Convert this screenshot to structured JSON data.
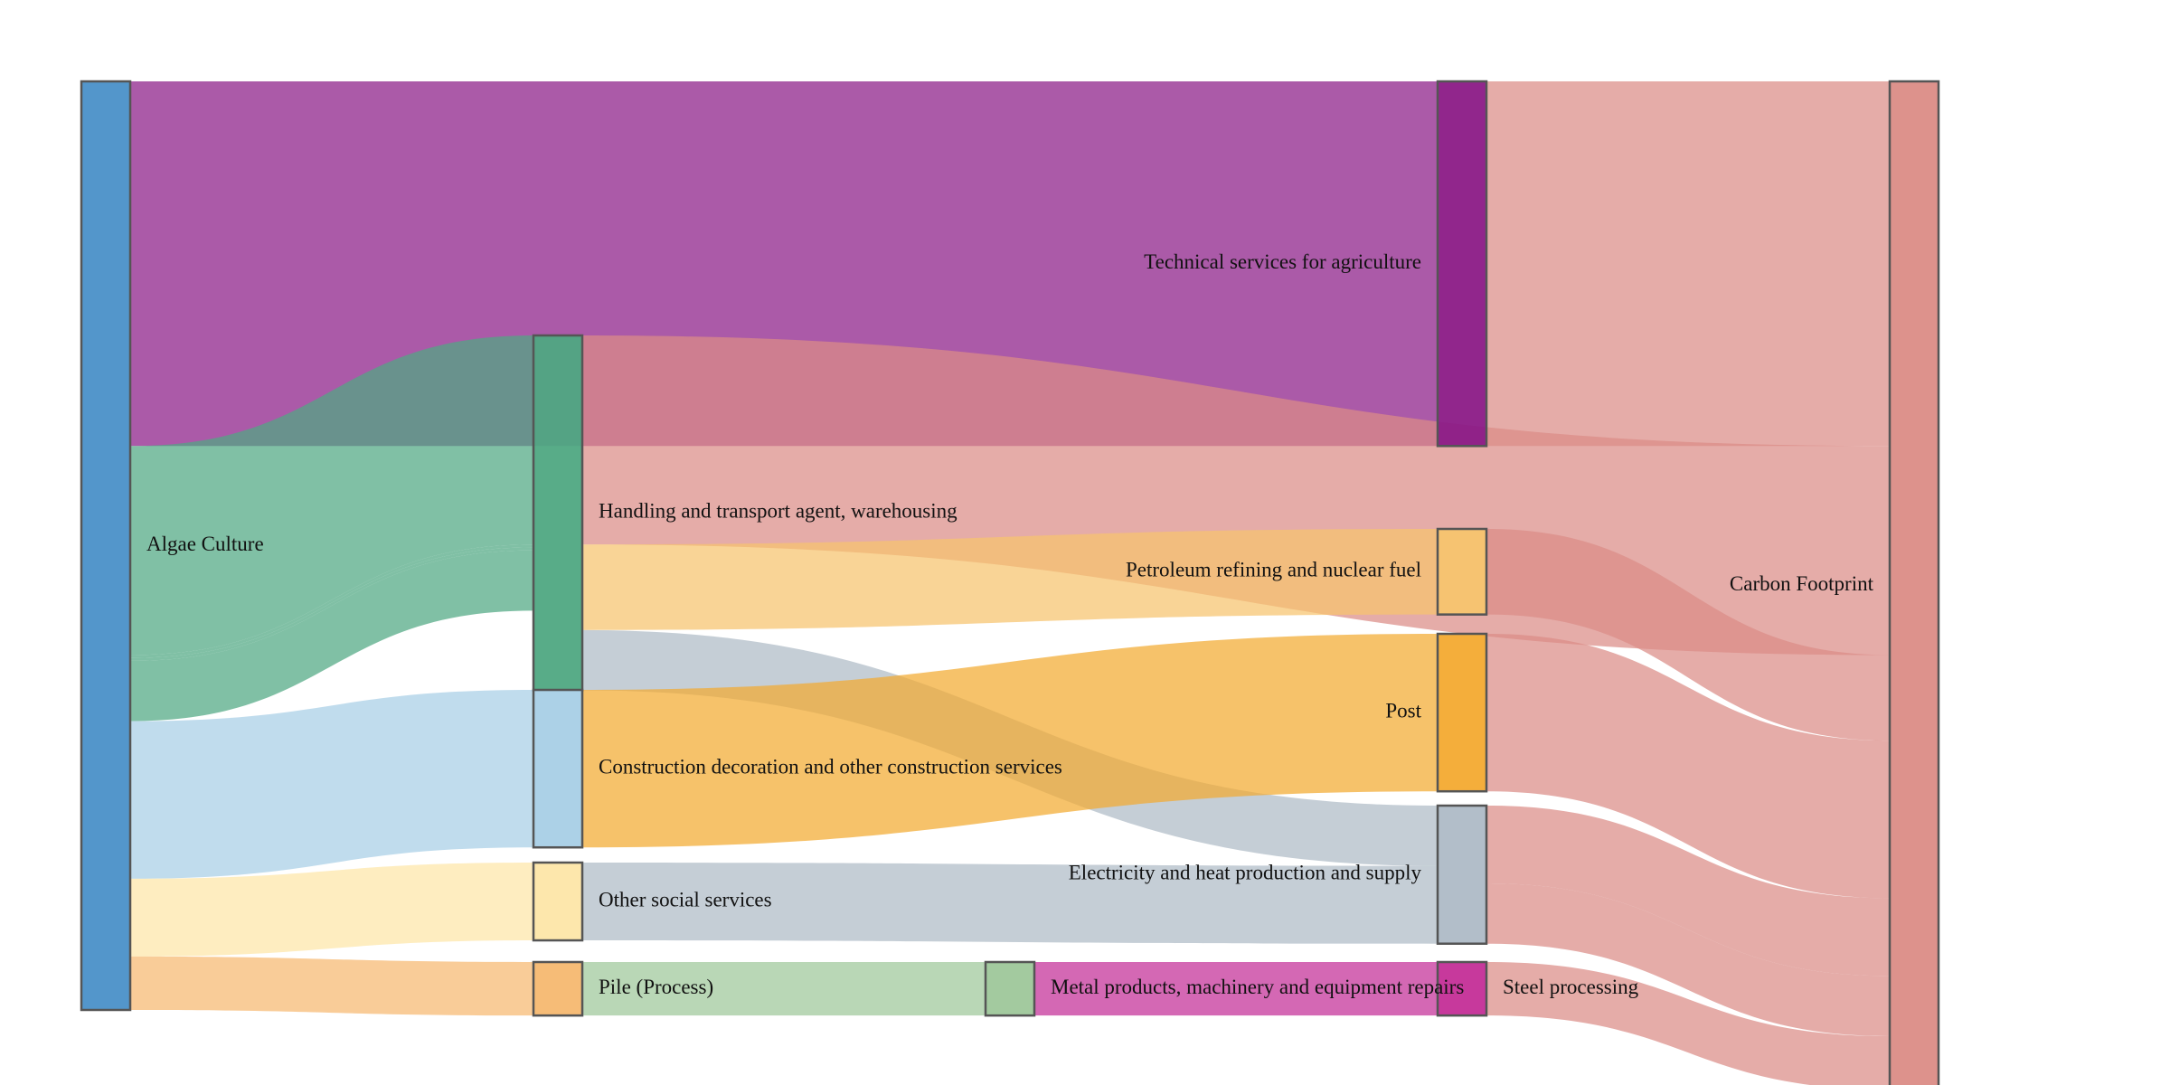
{
  "chart_data": {
    "type": "sankey",
    "nodes": [
      {
        "id": "algae",
        "name": "Algae Culture",
        "color": "#4a90c8"
      },
      {
        "id": "handling",
        "name": "Handling and transport agent, warehousing",
        "color": "#4fa882"
      },
      {
        "id": "construction",
        "name": "Construction decoration and other construction services",
        "color": "#a8cfe6"
      },
      {
        "id": "social",
        "name": "Other social services",
        "color": "#fde6a8"
      },
      {
        "id": "pile",
        "name": "Pile (Process)",
        "color": "#f6b870"
      },
      {
        "id": "metal",
        "name": "Metal products, machinery and equipment repairs",
        "color": "#9ec79a"
      },
      {
        "id": "technical",
        "name": "Technical services for agriculture",
        "color": "#8b1a86"
      },
      {
        "id": "petroleum",
        "name": "Petroleum refining and nuclear fuel",
        "color": "#f7c46e"
      },
      {
        "id": "post",
        "name": "Post",
        "color": "#f3aa30"
      },
      {
        "id": "electricity",
        "name": "Electricity and heat production and supply",
        "color": "#aebbc6"
      },
      {
        "id": "steel",
        "name": "Steel processing",
        "color": "#c42e97"
      },
      {
        "id": "carbon",
        "name": "Carbon Footprint",
        "color": "#db8c86"
      }
    ],
    "links": [
      {
        "source": "algae",
        "target": "technical",
        "value": 37.5,
        "color": "#8b1a86"
      },
      {
        "source": "algae",
        "target": "handling",
        "value": 21.5,
        "color": "#4fa882"
      },
      {
        "source": "algae",
        "target": "handling",
        "value": 0.3,
        "color": "#4fa882"
      },
      {
        "source": "algae",
        "target": "handling",
        "value": 0.3,
        "color": "#4fa882"
      },
      {
        "source": "algae",
        "target": "handling",
        "value": 6.2,
        "color": "#4fa882"
      },
      {
        "source": "algae",
        "target": "construction",
        "value": 16.2,
        "color": "#a8cfe6"
      },
      {
        "source": "algae",
        "target": "social",
        "value": 8.0,
        "color": "#fde6a8"
      },
      {
        "source": "algae",
        "target": "pile",
        "value": 5.5,
        "color": "#f6b870"
      },
      {
        "source": "handling",
        "target": "carbon",
        "value": 21.5,
        "color": "#db8c86"
      },
      {
        "source": "handling",
        "target": "petroleum",
        "value": 8.8,
        "color": "#f7c46e"
      },
      {
        "source": "handling",
        "target": "electricity",
        "value": 6.2,
        "color": "#aebbc6"
      },
      {
        "source": "construction",
        "target": "post",
        "value": 16.2,
        "color": "#f3aa30"
      },
      {
        "source": "social",
        "target": "electricity",
        "value": 8.0,
        "color": "#aebbc6"
      },
      {
        "source": "pile",
        "target": "metal",
        "value": 5.5,
        "color": "#9ec79a"
      },
      {
        "source": "metal",
        "target": "steel",
        "value": 5.5,
        "color": "#c42e97"
      },
      {
        "source": "technical",
        "target": "carbon",
        "value": 37.5,
        "color": "#db8c86"
      },
      {
        "source": "petroleum",
        "target": "carbon",
        "value": 8.8,
        "color": "#db8c86"
      },
      {
        "source": "post",
        "target": "carbon",
        "value": 16.2,
        "color": "#db8c86"
      },
      {
        "source": "electricity",
        "target": "carbon",
        "value": 8.0,
        "color": "#db8c86"
      },
      {
        "source": "electricity",
        "target": "carbon",
        "value": 6.2,
        "color": "#db8c86"
      },
      {
        "source": "steel",
        "target": "carbon",
        "value": 5.5,
        "color": "#db8c86"
      }
    ]
  }
}
